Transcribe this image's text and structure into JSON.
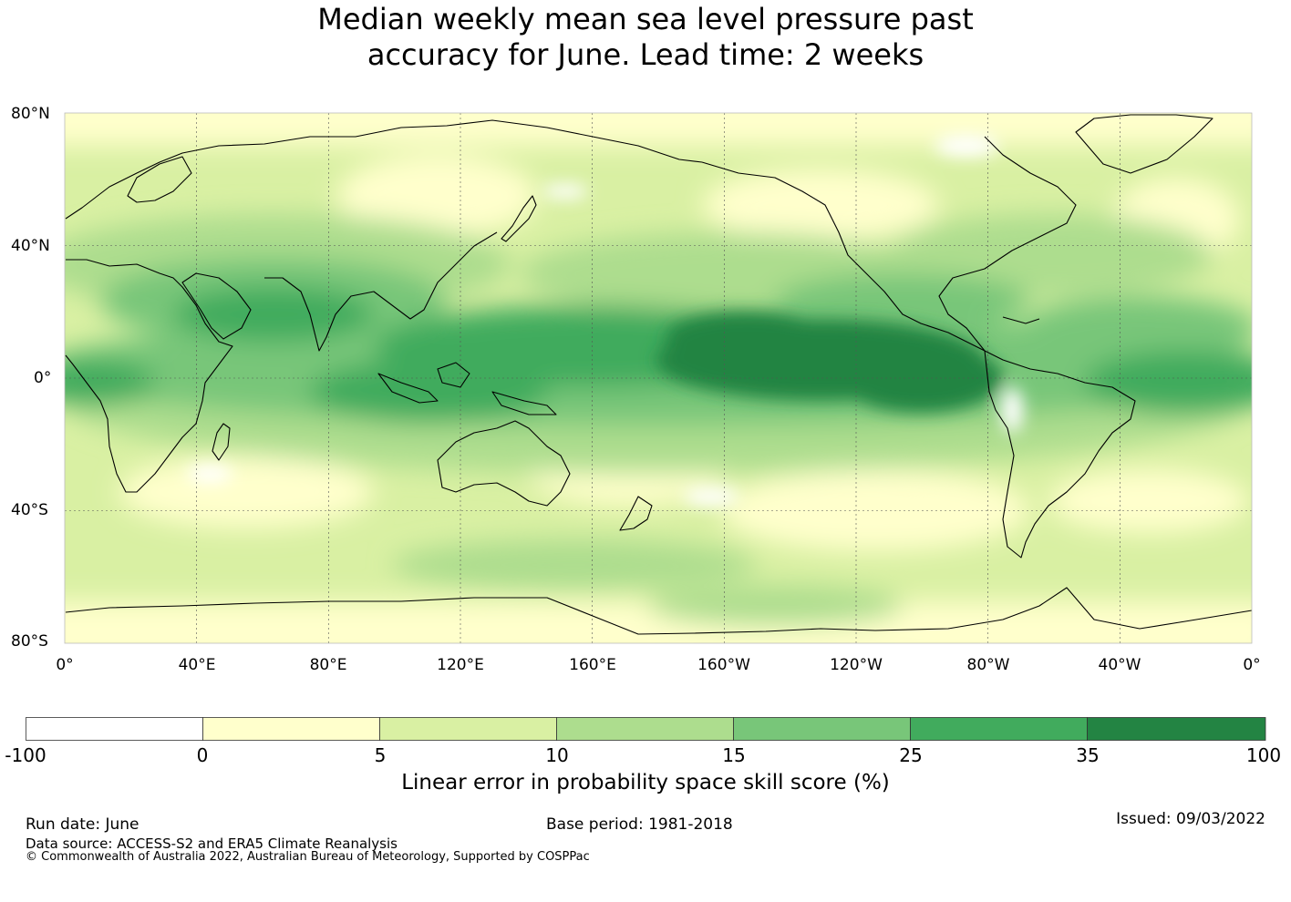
{
  "title": {
    "line1": "Median weekly mean sea level pressure past",
    "line2": "accuracy for June. Lead time: 2 weeks"
  },
  "map": {
    "lat_labels": [
      "80°N",
      "40°N",
      "0°",
      "40°S",
      "80°S"
    ],
    "lon_labels": [
      "0°",
      "40°E",
      "80°E",
      "120°E",
      "160°E",
      "160°W",
      "120°W",
      "80°W",
      "40°W",
      "0°"
    ]
  },
  "colorbar": {
    "ticks": [
      "-100",
      "0",
      "5",
      "10",
      "15",
      "25",
      "35",
      "100"
    ],
    "colors": [
      "#ffffff",
      "#ffffcc",
      "#d9f0a3",
      "#addd8e",
      "#78c679",
      "#41ab5d",
      "#238443"
    ],
    "label": "Linear error in probability space skill score (%)"
  },
  "footer": {
    "run_date": "Run date: June",
    "base_period": "Base period: 1981-2018",
    "issued": "Issued: 09/03/2022",
    "data_source": "Data source: ACCESS-S2 and ERA5 Climate Reanalysis",
    "copyright": "© Commonwealth of Australia 2022, Australian Bureau of Meteorology, Supported by COSPPac"
  }
}
